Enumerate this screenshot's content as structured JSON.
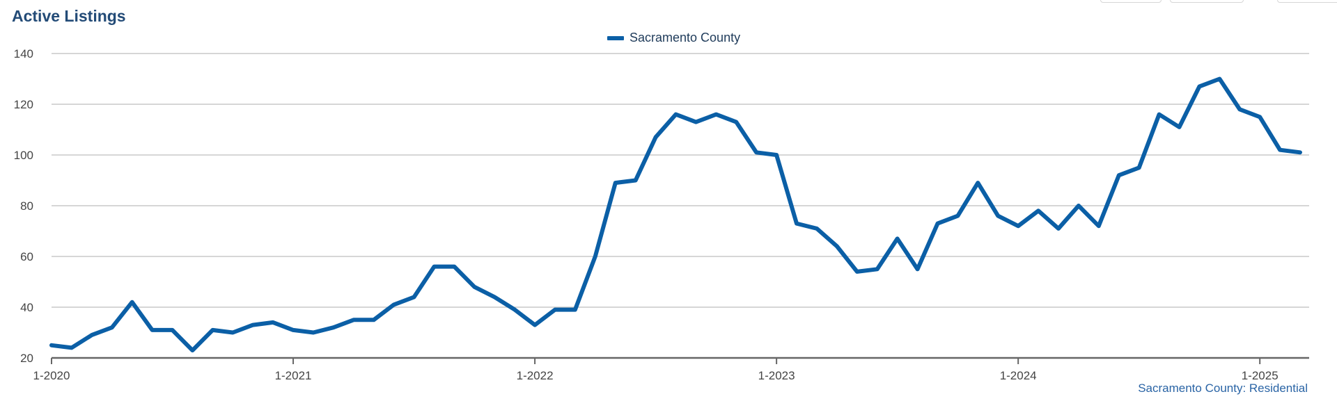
{
  "header": {
    "title": "Active Listings"
  },
  "footer": {
    "source": "Sacramento County: Residential"
  },
  "colors": {
    "series": "#0b5fa6",
    "title": "#234b77",
    "grid": "#bdbdbd",
    "axis": "#666666",
    "source": "#2a64a5"
  },
  "chart_data": {
    "type": "line",
    "title": "Active Listings",
    "legend_position": "top-center",
    "grid": true,
    "ylim": [
      20,
      140
    ],
    "yticks": [
      20,
      40,
      60,
      80,
      100,
      120,
      140
    ],
    "xticks": [
      "1-2020",
      "1-2021",
      "1-2022",
      "1-2023",
      "1-2024",
      "1-2025"
    ],
    "x": [
      "2020-01",
      "2020-02",
      "2020-03",
      "2020-04",
      "2020-05",
      "2020-06",
      "2020-07",
      "2020-08",
      "2020-09",
      "2020-10",
      "2020-11",
      "2020-12",
      "2021-01",
      "2021-02",
      "2021-03",
      "2021-04",
      "2021-05",
      "2021-06",
      "2021-07",
      "2021-08",
      "2021-09",
      "2021-10",
      "2021-11",
      "2021-12",
      "2022-01",
      "2022-02",
      "2022-03",
      "2022-04",
      "2022-05",
      "2022-06",
      "2022-07",
      "2022-08",
      "2022-09",
      "2022-10",
      "2022-11",
      "2022-12",
      "2023-01",
      "2023-02",
      "2023-03",
      "2023-04",
      "2023-05",
      "2023-06",
      "2023-07",
      "2023-08",
      "2023-09",
      "2023-10",
      "2023-11",
      "2023-12",
      "2024-01",
      "2024-02",
      "2024-03",
      "2024-04",
      "2024-05",
      "2024-06",
      "2024-07",
      "2024-08",
      "2024-09",
      "2024-10",
      "2024-11",
      "2024-12",
      "2025-01",
      "2025-02",
      "2025-03"
    ],
    "series": [
      {
        "name": "Sacramento County",
        "values": [
          25,
          24,
          29,
          32,
          42,
          31,
          31,
          23,
          31,
          30,
          33,
          34,
          31,
          30,
          32,
          35,
          35,
          41,
          44,
          56,
          56,
          48,
          44,
          39,
          33,
          39,
          39,
          60,
          89,
          90,
          107,
          116,
          113,
          116,
          113,
          101,
          100,
          73,
          71,
          64,
          54,
          55,
          67,
          55,
          73,
          76,
          89,
          76,
          72,
          78,
          71,
          80,
          72,
          92,
          95,
          116,
          111,
          127,
          130,
          118,
          115,
          102,
          101
        ]
      }
    ]
  }
}
